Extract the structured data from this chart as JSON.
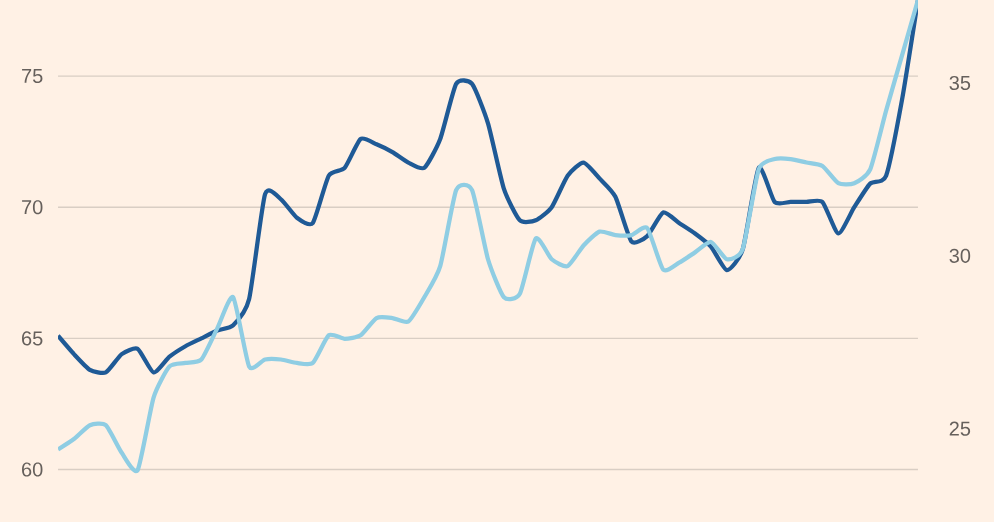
{
  "chart_data": {
    "type": "line",
    "categories": [
      null,
      null,
      null,
      null,
      null,
      null,
      null,
      null,
      null,
      null,
      null,
      null,
      null,
      null,
      null,
      null,
      null,
      null,
      null,
      null,
      null,
      null,
      null,
      null,
      null,
      null,
      null,
      null,
      null,
      null,
      null,
      null,
      null,
      null,
      null,
      null,
      null,
      null,
      null,
      null,
      null,
      null,
      null,
      null,
      null,
      null,
      null,
      null,
      null,
      null,
      null,
      null,
      null,
      null,
      null
    ],
    "series": [
      {
        "color": "#1f5a96",
        "values": [
          65.1,
          64.4,
          63.8,
          63.7,
          64.4,
          64.6,
          63.7,
          64.3,
          64.7,
          65.0,
          65.3,
          65.5,
          66.5,
          70.5,
          70.3,
          69.6,
          69.4,
          71.2,
          71.5,
          72.6,
          72.4,
          72.1,
          71.7,
          71.5,
          72.6,
          74.7,
          74.7,
          73.2,
          70.7,
          69.5,
          69.5,
          70.0,
          71.2,
          71.7,
          71.1,
          70.4,
          68.7,
          68.9,
          69.8,
          69.4,
          69.0,
          68.5,
          67.6,
          68.4,
          71.5,
          70.2,
          70.2,
          70.2,
          70.2,
          69.0,
          70.0,
          70.9,
          71.2,
          74.1,
          77.9
        ]
      },
      {
        "color": "#8fcde3",
        "axis": "y2",
        "values": [
          24.4,
          24.7,
          25.1,
          25.1,
          24.3,
          23.8,
          25.9,
          26.8,
          26.9,
          27.0,
          27.9,
          28.8,
          26.8,
          27.0,
          27.0,
          26.9,
          26.9,
          27.7,
          27.6,
          27.7,
          28.2,
          28.2,
          28.1,
          28.8,
          29.7,
          31.9,
          31.9,
          29.9,
          28.8,
          28.9,
          30.5,
          29.9,
          29.7,
          30.3,
          30.7,
          30.6,
          30.6,
          30.8,
          29.6,
          29.8,
          30.1,
          30.4,
          29.9,
          30.2,
          32.5,
          32.8,
          32.8,
          32.7,
          32.6,
          32.1,
          32.1,
          32.5,
          34.2,
          35.8,
          37.4
        ]
      }
    ],
    "ylim": [
      58,
      77.9
    ],
    "yticks": [
      60,
      65,
      70,
      75
    ],
    "y2lim": [
      22.3,
      37.4
    ],
    "y2ticks": [
      25,
      30,
      35
    ],
    "grid": "y"
  }
}
